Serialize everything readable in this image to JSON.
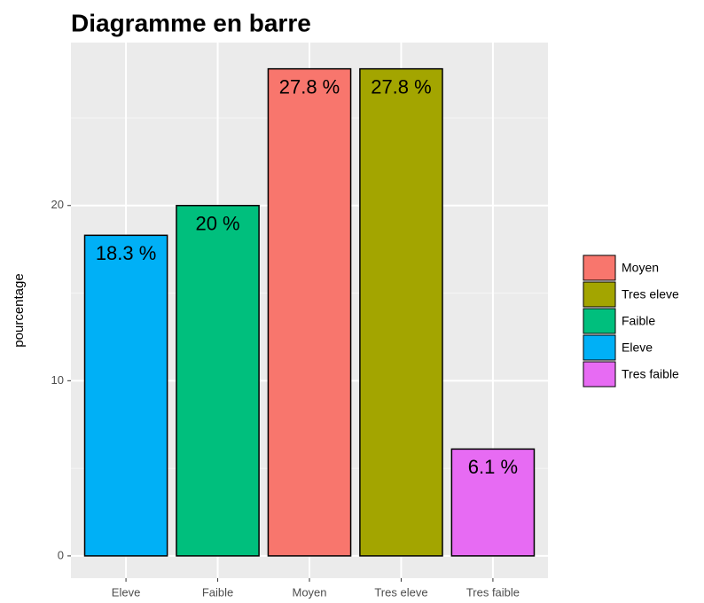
{
  "chart_data": {
    "type": "bar",
    "title": "Diagramme en barre",
    "y_label": "pourcentage",
    "categories": [
      "Eleve",
      "Faible",
      "Moyen",
      "Tres eleve",
      "Tres faible"
    ],
    "values": [
      18.3,
      20,
      27.8,
      27.8,
      6.1
    ],
    "value_labels": [
      "18.3 %",
      "20 %",
      "27.8 %",
      "27.8 %",
      "6.1 %"
    ],
    "colors": [
      "#00B0F6",
      "#00BF7D",
      "#F8766D",
      "#A3A500",
      "#E76BF3"
    ],
    "legend": [
      {
        "label": "Moyen",
        "color": "#F8766D"
      },
      {
        "label": "Tres eleve",
        "color": "#A3A500"
      },
      {
        "label": "Faible",
        "color": "#00BF7D"
      },
      {
        "label": "Eleve",
        "color": "#00B0F6"
      },
      {
        "label": "Tres faible",
        "color": "#E76BF3"
      }
    ],
    "ylim": [
      -1.27,
      29.3
    ],
    "yticks": [
      0,
      10,
      20
    ],
    "minor_yticks": [
      5,
      15,
      25
    ],
    "grid": true
  }
}
